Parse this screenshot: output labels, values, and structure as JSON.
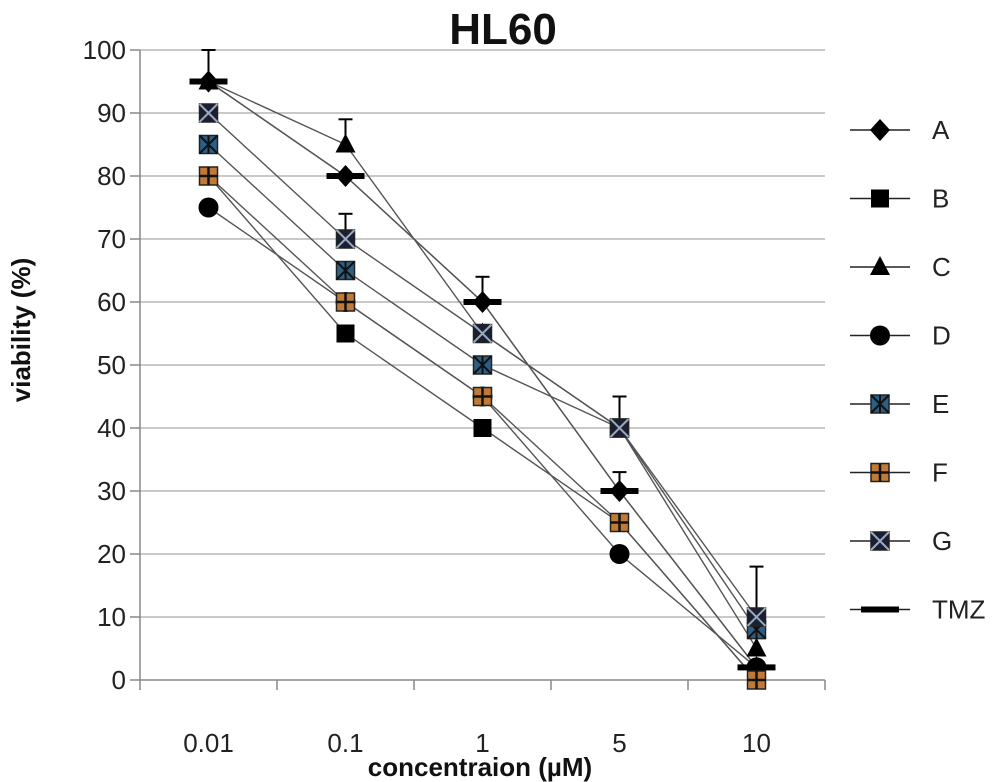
{
  "chart_data": {
    "type": "line",
    "title": "HL60",
    "xlabel": "concentraion (µM)",
    "ylabel": "viability (%)",
    "categories": [
      "0.01",
      "0.1",
      "1",
      "5",
      "10"
    ],
    "ylim": [
      0,
      100
    ],
    "yticks": [
      0,
      10,
      20,
      30,
      40,
      50,
      60,
      70,
      80,
      90,
      100
    ],
    "grid": "horizontal",
    "legend_position": "right",
    "series": [
      {
        "name": "A",
        "marker": "diamond",
        "color": "#000000",
        "values": [
          95,
          80,
          60,
          30,
          2
        ]
      },
      {
        "name": "B",
        "marker": "square",
        "color": "#000000",
        "values": [
          80,
          55,
          40,
          25,
          0
        ]
      },
      {
        "name": "C",
        "marker": "triangle",
        "color": "#000000",
        "values": [
          95,
          85,
          55,
          40,
          5
        ]
      },
      {
        "name": "D",
        "marker": "circle",
        "color": "#000000",
        "values": [
          75,
          60,
          45,
          20,
          2
        ]
      },
      {
        "name": "E",
        "marker": "asterisk-box",
        "color": "#2c5f86",
        "values": [
          85,
          65,
          50,
          40,
          8
        ]
      },
      {
        "name": "F",
        "marker": "plus-box",
        "color": "#c07a35",
        "values": [
          80,
          60,
          45,
          25,
          0
        ]
      },
      {
        "name": "G",
        "marker": "x-box",
        "color": "#1a1f33",
        "values": [
          90,
          70,
          55,
          40,
          10
        ]
      },
      {
        "name": "TMZ",
        "marker": "dash",
        "color": "#000000",
        "values": [
          95,
          80,
          60,
          30,
          2
        ]
      }
    ],
    "error_bars": [
      {
        "series": "A",
        "category": "0.01",
        "plus": 5
      },
      {
        "series": "C",
        "category": "0.1",
        "plus": 4
      },
      {
        "series": "G",
        "category": "0.1",
        "plus": 4
      },
      {
        "series": "TMZ",
        "category": "1",
        "plus": 4
      },
      {
        "series": "C",
        "category": "5",
        "plus": 5
      },
      {
        "series": "TMZ",
        "category": "5",
        "plus": 3
      },
      {
        "series": "G",
        "category": "10",
        "plus": 8
      }
    ]
  }
}
